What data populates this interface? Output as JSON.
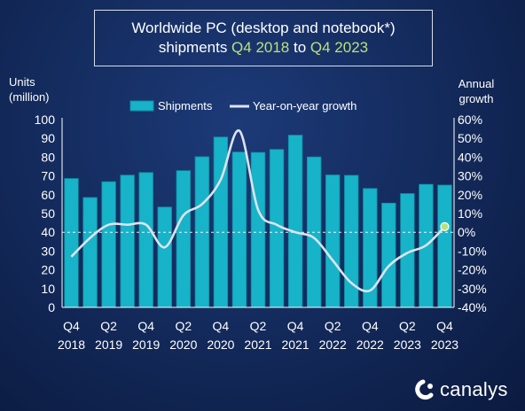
{
  "title": {
    "line1": "Worldwide PC (desktop and notebook*)",
    "line2_pre": "shipments ",
    "line2_from": "Q4 2018",
    "line2_mid": " to ",
    "line2_to": "Q4 2023"
  },
  "y_left_title": {
    "line1": "Units",
    "line2": "(million)"
  },
  "y_right_title": {
    "line1": "Annual",
    "line2": "growth"
  },
  "logo": {
    "text": "canalys"
  },
  "colors": {
    "bar": "#17b3c8",
    "bar_edge": "#0e8fa3",
    "line": "#dde3ee",
    "highlight": "#b9e27a",
    "zero_line": "#ffffff"
  },
  "chart_data": {
    "type": "bar",
    "categories": [
      "Q4 2018",
      "Q1 2019",
      "Q2 2019",
      "Q3 2019",
      "Q4 2019",
      "Q1 2020",
      "Q2 2020",
      "Q3 2020",
      "Q4 2020",
      "Q1 2021",
      "Q2 2021",
      "Q3 2021",
      "Q4 2021",
      "Q1 2022",
      "Q2 2022",
      "Q3 2022",
      "Q4 2022",
      "Q1 2023",
      "Q2 2023",
      "Q3 2023",
      "Q4 2023"
    ],
    "x_tick_labels": [
      {
        "index": 0,
        "q": "Q4",
        "y": "2018"
      },
      {
        "index": 2,
        "q": "Q2",
        "y": "2019"
      },
      {
        "index": 4,
        "q": "Q4",
        "y": "2019"
      },
      {
        "index": 6,
        "q": "Q2",
        "y": "2020"
      },
      {
        "index": 8,
        "q": "Q4",
        "y": "2020"
      },
      {
        "index": 10,
        "q": "Q2",
        "y": "2021"
      },
      {
        "index": 12,
        "q": "Q4",
        "y": "2021"
      },
      {
        "index": 14,
        "q": "Q2",
        "y": "2022"
      },
      {
        "index": 16,
        "q": "Q4",
        "y": "2022"
      },
      {
        "index": 18,
        "q": "Q2",
        "y": "2023"
      },
      {
        "index": 20,
        "q": "Q4",
        "y": "2023"
      }
    ],
    "series": [
      {
        "name": "Shipments",
        "type": "bar",
        "axis": "left",
        "values": [
          68.6,
          58.5,
          66.9,
          70.4,
          71.8,
          53.4,
          72.8,
          80.2,
          90.7,
          82.7,
          82.5,
          84.1,
          91.7,
          80.1,
          70.5,
          70.3,
          63.3,
          55.5,
          60.6,
          65.5,
          65.1
        ]
      },
      {
        "name": "Year-on-year growth",
        "type": "line",
        "axis": "right",
        "values": [
          -13,
          -3,
          4,
          4,
          4,
          -8,
          9,
          15,
          28,
          54,
          12,
          4,
          0,
          -3,
          -15,
          -27,
          -31,
          -18,
          -11,
          -7,
          3
        ]
      }
    ],
    "y_left": {
      "ylim": [
        0,
        100
      ],
      "ticks": [
        0,
        10,
        20,
        30,
        40,
        50,
        60,
        70,
        80,
        90,
        100
      ]
    },
    "y_right": {
      "ylim": [
        -40,
        60
      ],
      "ticks": [
        "-40%",
        "-30%",
        "-20%",
        "-10%",
        "0%",
        "10%",
        "20%",
        "30%",
        "40%",
        "50%",
        "60%"
      ]
    },
    "legend_position": "top",
    "zero_line": "dashed at 0% growth"
  }
}
